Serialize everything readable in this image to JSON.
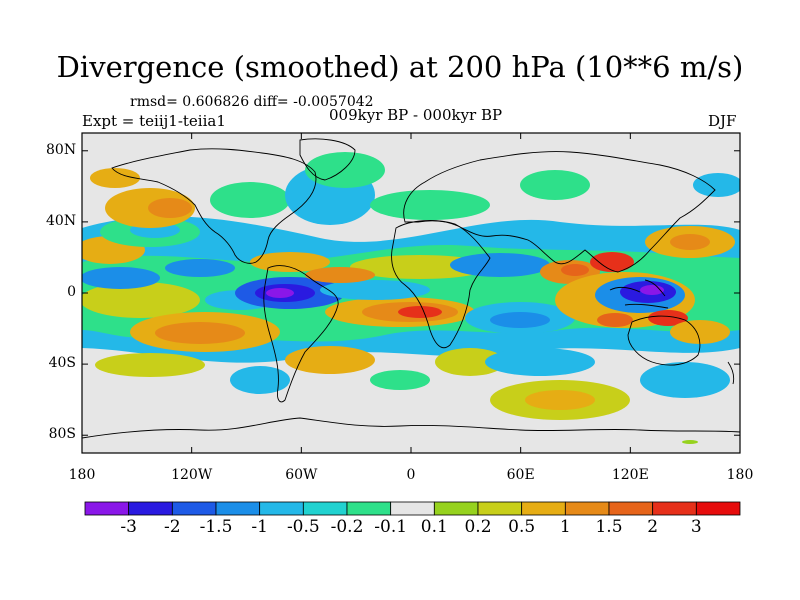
{
  "title": "Divergence (smoothed) at 200 hPa (10**6 m/s)",
  "stats": "rmsd= 0.606826 diff= -0.0057042",
  "experiment": "Expt = teiij1-teiia1",
  "period": "009kyr BP - 000kyr BP",
  "season": "DJF",
  "map": {
    "y_ticks": [
      {
        "label": "80N",
        "lat": 80
      },
      {
        "label": "40N",
        "lat": 40
      },
      {
        "label": "0",
        "lat": 0
      },
      {
        "label": "40S",
        "lat": -40
      },
      {
        "label": "80S",
        "lat": -80
      }
    ],
    "x_ticks": [
      {
        "label": "180",
        "lon": -180
      },
      {
        "label": "120W",
        "lon": -120
      },
      {
        "label": "60W",
        "lon": -60
      },
      {
        "label": "0",
        "lon": 0
      },
      {
        "label": "60E",
        "lon": 60
      },
      {
        "label": "120E",
        "lon": 120
      },
      {
        "label": "180",
        "lon": 180
      }
    ],
    "lat_range": [
      -90,
      90
    ],
    "lon_range": [
      -180,
      180
    ]
  },
  "colorbar": {
    "labels": [
      "-3",
      "-2",
      "-1.5",
      "-1",
      "-0.5",
      "-0.2",
      "-0.1",
      "0.1",
      "0.2",
      "0.5",
      "1",
      "1.5",
      "2",
      "3"
    ],
    "colors": [
      "#8a17e8",
      "#2a1ae0",
      "#1e5ae6",
      "#1b8ee8",
      "#24b8e8",
      "#21d2d0",
      "#2ee08a",
      "#e6e6e6",
      "#96d21e",
      "#c8cf1a",
      "#e6ad14",
      "#e68a18",
      "#e6641a",
      "#e6301a",
      "#e60c0c"
    ]
  }
}
